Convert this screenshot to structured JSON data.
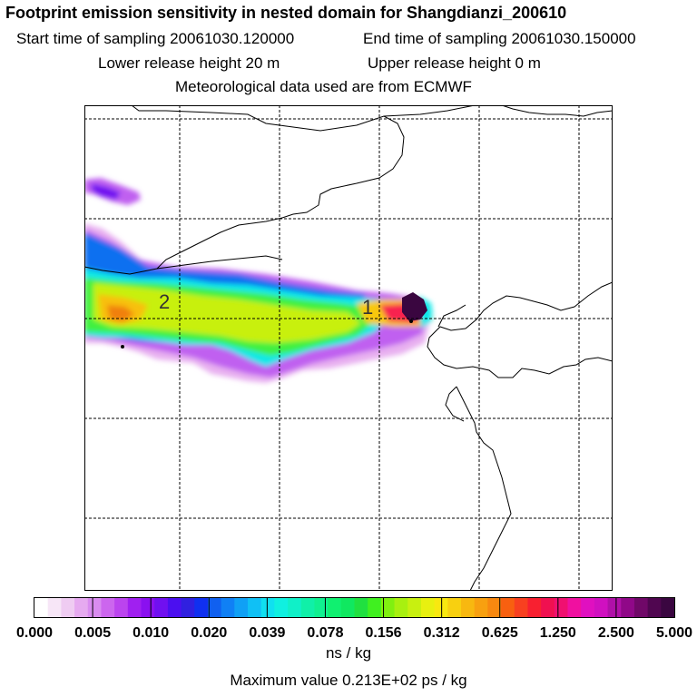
{
  "header": {
    "title": "Footprint emission sensitivity in nested domain for Shangdianzi_200610",
    "start_label": "Start time of sampling 20061030.120000",
    "end_label": "End time of sampling 20061030.150000",
    "lower_label": "Lower release height   20 m",
    "upper_label": "Upper release height    0 m",
    "met_label": "Meteorological data used are from ECMWF"
  },
  "map": {
    "site_markers": [
      "1",
      "2"
    ]
  },
  "colorbar": {
    "tick_labels": [
      "0.000",
      "0.005",
      "0.010",
      "0.020",
      "0.039",
      "0.078",
      "0.156",
      "0.312",
      "0.625",
      "1.250",
      "2.500",
      "5.000"
    ],
    "colors": [
      "#ffffff",
      "#f7e6f7",
      "#efccf2",
      "#e6aaf0",
      "#d98cf0",
      "#cc66ee",
      "#bb44ee",
      "#a020f0",
      "#8a10f0",
      "#7010f0",
      "#4b0ff0",
      "#3020e0",
      "#1030f0",
      "#1060f0",
      "#1080f5",
      "#10a0f5",
      "#10c0f5",
      "#10e0f0",
      "#10f0e0",
      "#10f0c8",
      "#10f0a8",
      "#10f090",
      "#10f070",
      "#10e860",
      "#20e040",
      "#40f020",
      "#80f010",
      "#a8f010",
      "#c8f010",
      "#e8f010",
      "#f8e810",
      "#f8d010",
      "#f8b810",
      "#f8a010",
      "#f88810",
      "#f86010",
      "#f84020",
      "#f82030",
      "#f01050",
      "#f01070",
      "#f010a0",
      "#e010c0",
      "#d010c0",
      "#b010a8",
      "#900888",
      "#700868",
      "#500650",
      "#3a0640"
    ],
    "units": "ns / kg",
    "max_value": "Maximum value  0.213E+02 ps / kg"
  }
}
